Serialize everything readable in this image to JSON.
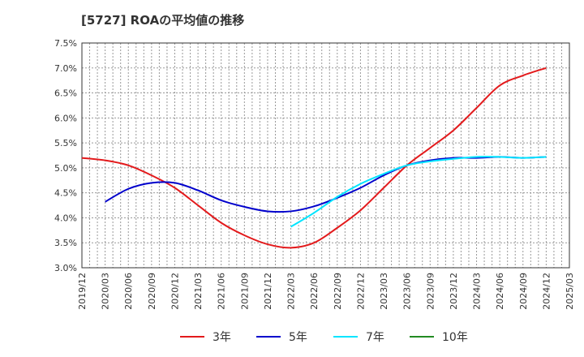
{
  "chart_data": {
    "type": "line",
    "title": "[5727]  ROAの平均値の推移",
    "xlabel": "",
    "ylabel": "",
    "ylim": [
      3.0,
      7.5
    ],
    "y_ticks": [
      3.0,
      3.5,
      4.0,
      4.5,
      5.0,
      5.5,
      6.0,
      6.5,
      7.0,
      7.5
    ],
    "y_tick_labels": [
      "3.0%",
      "3.5%",
      "4.0%",
      "4.5%",
      "5.0%",
      "5.5%",
      "6.0%",
      "6.5%",
      "7.0%",
      "7.5%"
    ],
    "x_tick_labels": [
      "2019/12",
      "2020/03",
      "2020/06",
      "2020/09",
      "2020/12",
      "2021/03",
      "2021/06",
      "2021/09",
      "2021/12",
      "2022/03",
      "2022/06",
      "2022/09",
      "2022/12",
      "2023/03",
      "2023/06",
      "2023/09",
      "2023/12",
      "2024/03",
      "2024/06",
      "2024/09",
      "2024/12",
      "2025/03"
    ],
    "grid": true,
    "legend_position": "bottom",
    "series": [
      {
        "name": "3年",
        "color": "#e31a1c",
        "start_index": 0,
        "values": [
          5.2,
          5.15,
          5.05,
          4.85,
          4.6,
          4.25,
          3.9,
          3.65,
          3.47,
          3.4,
          3.5,
          3.8,
          4.15,
          4.6,
          5.05,
          5.4,
          5.75,
          6.2,
          6.65,
          6.85,
          7.0
        ]
      },
      {
        "name": "5年",
        "color": "#0000cc",
        "start_index": 1,
        "values": [
          4.32,
          4.58,
          4.7,
          4.7,
          4.55,
          4.35,
          4.22,
          4.13,
          4.13,
          4.23,
          4.4,
          4.6,
          4.85,
          5.05,
          5.15,
          5.2,
          5.2,
          5.22,
          5.2,
          5.22
        ]
      },
      {
        "name": "7年",
        "color": "#00e5ff",
        "start_index": 9,
        "values": [
          3.82,
          4.1,
          4.42,
          4.68,
          4.88,
          5.05,
          5.13,
          5.18,
          5.22,
          5.22,
          5.2,
          5.22
        ]
      },
      {
        "name": "10年",
        "color": "#228b22",
        "start_index": 0,
        "values": []
      }
    ]
  }
}
